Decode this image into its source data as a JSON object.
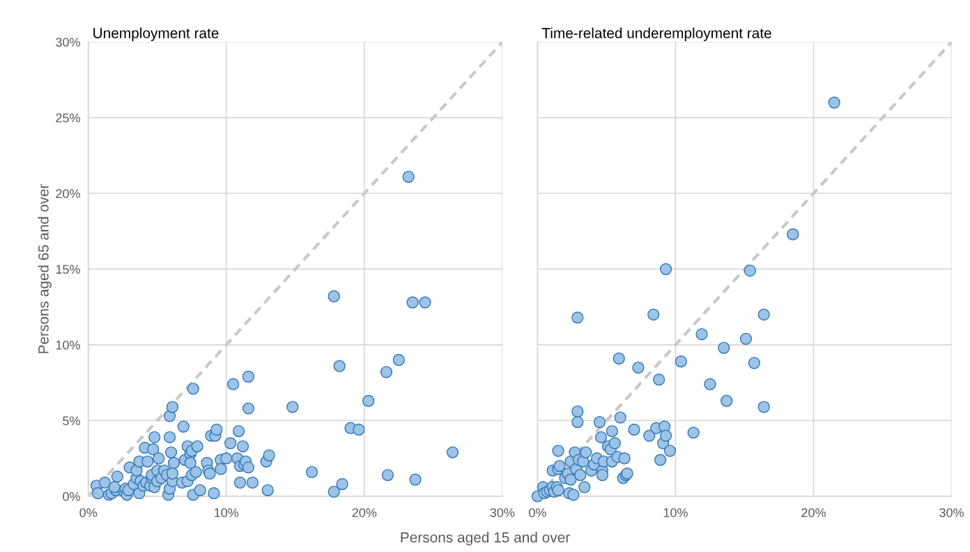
{
  "chart_data": [
    {
      "type": "scatter",
      "title": "Unemployment rate",
      "xlabel": "Persons aged 15 and over",
      "ylabel": "Persons aged 65 and over",
      "xlim": [
        0,
        30
      ],
      "ylim": [
        0,
        30
      ],
      "xticks": [
        {
          "value": 0,
          "label": "0%"
        },
        {
          "value": 10,
          "label": "10%"
        },
        {
          "value": 20,
          "label": "20%"
        },
        {
          "value": 30,
          "label": "30%"
        }
      ],
      "yticks": [
        {
          "value": 0,
          "label": "0%"
        },
        {
          "value": 5,
          "label": "5%"
        },
        {
          "value": 10,
          "label": "10%"
        },
        {
          "value": 15,
          "label": "15%"
        },
        {
          "value": 20,
          "label": "20%"
        },
        {
          "value": 25,
          "label": "25%"
        },
        {
          "value": 30,
          "label": "30%"
        }
      ],
      "grid": true,
      "marker": "circle",
      "series": [
        {
          "type": "line",
          "color": "#c8c8c8",
          "line_style": "dashed",
          "marker": "none",
          "x": [
            0,
            30
          ],
          "values": [
            0,
            30
          ]
        },
        {
          "color": "#9dc3e6",
          "x": [
            0.6,
            0.7,
            1.2,
            1.5,
            1.7,
            2.0,
            2.1,
            1.9,
            2.6,
            2.7,
            2.8,
            2.9,
            3.0,
            3.3,
            3.5,
            3.5,
            3.7,
            3.7,
            3.8,
            4.0,
            4.1,
            4.2,
            4.3,
            4.5,
            4.6,
            4.7,
            4.8,
            4.8,
            4.6,
            5.0,
            5.0,
            5.1,
            5.3,
            5.5,
            5.7,
            5.8,
            5.9,
            5.9,
            5.9,
            6.1,
            6.1,
            6.2,
            6.1,
            6.0,
            6.9,
            6.8,
            7.0,
            7.2,
            7.2,
            7.4,
            7.4,
            7.5,
            7.5,
            7.6,
            7.6,
            7.8,
            7.9,
            8.1,
            8.6,
            8.7,
            8.9,
            8.8,
            9.1,
            9.2,
            9.3,
            9.6,
            9.6,
            10.0,
            10.3,
            10.5,
            10.8,
            10.9,
            11.0,
            11.0,
            11.2,
            11.3,
            11.4,
            11.6,
            11.6,
            11.6,
            11.9,
            12.9,
            13.1,
            13.0,
            14.8,
            16.2,
            17.8,
            17.8,
            18.2,
            18.4,
            19.0,
            19.6,
            20.3,
            21.6,
            21.7,
            22.5,
            23.2,
            23.5,
            23.7,
            24.4,
            26.4
          ],
          "values": [
            0.7,
            0.2,
            0.9,
            0.1,
            0.2,
            0.4,
            1.3,
            0.6,
            0.3,
            0.5,
            0.1,
            0.4,
            1.9,
            0.8,
            1.2,
            1.7,
            2.3,
            0.2,
            1.0,
            0.7,
            3.2,
            0.9,
            2.3,
            0.7,
            1.2,
            3.1,
            3.9,
            0.6,
            1.4,
            1.0,
            1.7,
            2.5,
            1.2,
            1.7,
            1.4,
            0.1,
            5.3,
            3.9,
            0.5,
            5.9,
            1.0,
            2.2,
            1.5,
            2.9,
            4.6,
            0.9,
            2.4,
            3.3,
            1.0,
            2.8,
            2.2,
            3.0,
            1.4,
            7.1,
            0.1,
            1.6,
            3.3,
            0.4,
            2.2,
            1.7,
            4.0,
            1.5,
            0.2,
            4.0,
            4.4,
            2.4,
            1.8,
            2.5,
            3.5,
            7.4,
            2.5,
            4.3,
            2.0,
            0.9,
            3.3,
            2.1,
            2.3,
            7.9,
            5.8,
            1.9,
            0.9,
            2.3,
            2.7,
            0.4,
            5.9,
            1.6,
            13.2,
            0.3,
            8.6,
            0.8,
            4.5,
            4.4,
            6.3,
            8.2,
            1.4,
            9.0,
            21.1,
            12.8,
            1.1,
            12.8,
            2.9
          ]
        }
      ]
    },
    {
      "type": "scatter",
      "title": "Time-related underemployment rate",
      "xlim": [
        0,
        30
      ],
      "ylim": [
        0,
        30
      ],
      "tick_labels": "x",
      "xticks": [
        {
          "value": 0,
          "label": "0%"
        },
        {
          "value": 10,
          "label": "10%"
        },
        {
          "value": 20,
          "label": "20%"
        },
        {
          "value": 30,
          "label": "30%"
        }
      ],
      "yticks": [
        {
          "value": 0,
          "label": null
        },
        {
          "value": 5,
          "label": null
        },
        {
          "value": 10,
          "label": null
        },
        {
          "value": 15,
          "label": null
        },
        {
          "value": 20,
          "label": null
        },
        {
          "value": 25,
          "label": null
        },
        {
          "value": 30,
          "label": null
        }
      ],
      "grid": true,
      "marker": "circle",
      "series": [
        {
          "type": "line",
          "color": "#c8c8c8",
          "line_style": "dashed",
          "marker": "none",
          "x": [
            0,
            30
          ],
          "values": [
            0,
            30
          ]
        },
        {
          "color": "#9dc3e6",
          "x": [
            0,
            0.4,
            0.5,
            0.7,
            0.9,
            1.1,
            1.2,
            1.1,
            1.4,
            1.5,
            1.5,
            1.5,
            1.6,
            2.0,
            2.2,
            2.4,
            2.3,
            2.4,
            2.6,
            2.8,
            2.7,
            2.9,
            2.9,
            2.9,
            3.0,
            3.1,
            3.3,
            3.4,
            3.5,
            3.9,
            4.1,
            4.3,
            4.5,
            4.6,
            4.7,
            4.7,
            4.8,
            5.1,
            5.3,
            5.4,
            5.4,
            5.6,
            5.8,
            5.9,
            6.0,
            6.2,
            6.3,
            6.4,
            6.5,
            7.0,
            7.3,
            8.1,
            8.4,
            8.6,
            8.8,
            8.9,
            9.1,
            9.2,
            9.3,
            9.3,
            9.6,
            10.4,
            11.3,
            11.9,
            12.5,
            13.5,
            13.7,
            15.1,
            15.4,
            15.7,
            16.4,
            16.4,
            18.5,
            21.5
          ],
          "values": [
            0,
            0.6,
            0.2,
            0.3,
            0.4,
            0.6,
            0.3,
            1.7,
            0.6,
            1.8,
            0.4,
            3.0,
            2.0,
            1.2,
            1.5,
            2.3,
            0.2,
            1.1,
            0.1,
            1.8,
            2.9,
            11.8,
            5.6,
            4.9,
            2.4,
            1.4,
            2.3,
            0.6,
            2.9,
            1.7,
            2.1,
            2.5,
            4.9,
            3.9,
            1.7,
            1.4,
            2.3,
            3.3,
            3.1,
            2.3,
            4.3,
            3.5,
            2.6,
            9.1,
            5.2,
            1.2,
            2.5,
            1.4,
            1.5,
            4.4,
            8.5,
            4.0,
            12.0,
            4.5,
            7.7,
            2.4,
            3.5,
            4.6,
            15.0,
            4.0,
            3.0,
            8.9,
            4.2,
            10.7,
            7.4,
            9.8,
            6.3,
            10.4,
            14.9,
            8.8,
            12.0,
            5.9,
            17.3,
            26.0
          ]
        }
      ]
    }
  ]
}
